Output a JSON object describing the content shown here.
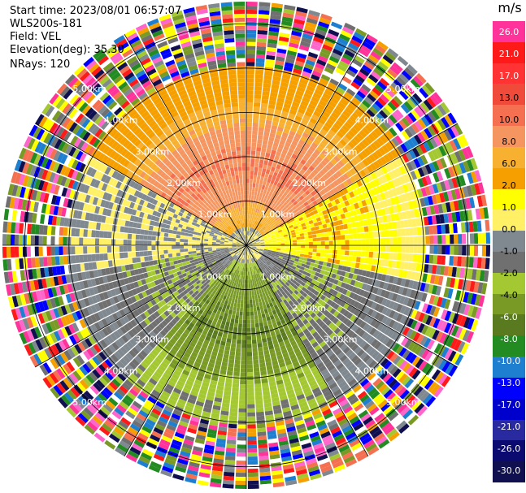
{
  "header": {
    "start_time": "Start time: 2023/08/01 06:57:07",
    "site": "WLS200s-181",
    "field": "Field: VEL",
    "elevation": "Elevation(deg): 35.30",
    "nrays": "NRays: 120"
  },
  "chart_data": {
    "type": "heatmap",
    "subtype": "ppi-polar",
    "field": "VEL",
    "units": "m/s",
    "nrays": 120,
    "elevation_deg": 35.3,
    "range_rings_km": [
      1.0,
      2.0,
      3.0,
      4.0,
      5.0
    ],
    "range_ring_labels": [
      "1.00km",
      "2.00km",
      "3.00km",
      "4.00km",
      "5.00km"
    ],
    "azimuth_spokes_deg": [
      0,
      30,
      60,
      90,
      120,
      150,
      180,
      210,
      240,
      270,
      300,
      330
    ],
    "grid": true,
    "colorbar": {
      "title": "m/s",
      "position": "right",
      "tick_labels": [
        "26.0",
        "21.0",
        "17.0",
        "13.0",
        "10.0",
        "8.0",
        "6.0",
        "2.0",
        "1.0",
        "0.0",
        "-1.0",
        "-2.0",
        "-4.0",
        "-6.0",
        "-8.0",
        "-10.0",
        "-13.0",
        "-17.0",
        "-21.0",
        "-26.0",
        "-30.0"
      ],
      "colors": [
        "#ff3399",
        "#ff1a1a",
        "#ff3333",
        "#f04a3a",
        "#f47050",
        "#f59560",
        "#f7b030",
        "#f5a000",
        "#ffff00",
        "#fff066",
        "#808890",
        "#707070",
        "#a4c832",
        "#7a9a26",
        "#5a7a20",
        "#228b22",
        "#1e7fd0",
        "#0000ff",
        "#0000cc",
        "#2a2aa0",
        "#0a0a70",
        "#101050"
      ]
    },
    "velocity_pattern": {
      "core_range_km": 4.0,
      "noise_beyond_km": 4.0,
      "azimuth_sectors": [
        {
          "from_deg": 300,
          "to_deg": 60,
          "peak_value": 10.0
        },
        {
          "from_deg": 60,
          "to_deg": 100,
          "peak_value": 2.0
        },
        {
          "from_deg": 100,
          "to_deg": 150,
          "peak_value": -2.0
        },
        {
          "from_deg": 150,
          "to_deg": 220,
          "peak_value": -6.0
        },
        {
          "from_deg": 220,
          "to_deg": 260,
          "peak_value": -2.0
        },
        {
          "from_deg": 260,
          "to_deg": 300,
          "peak_value": 0.0
        }
      ]
    }
  }
}
